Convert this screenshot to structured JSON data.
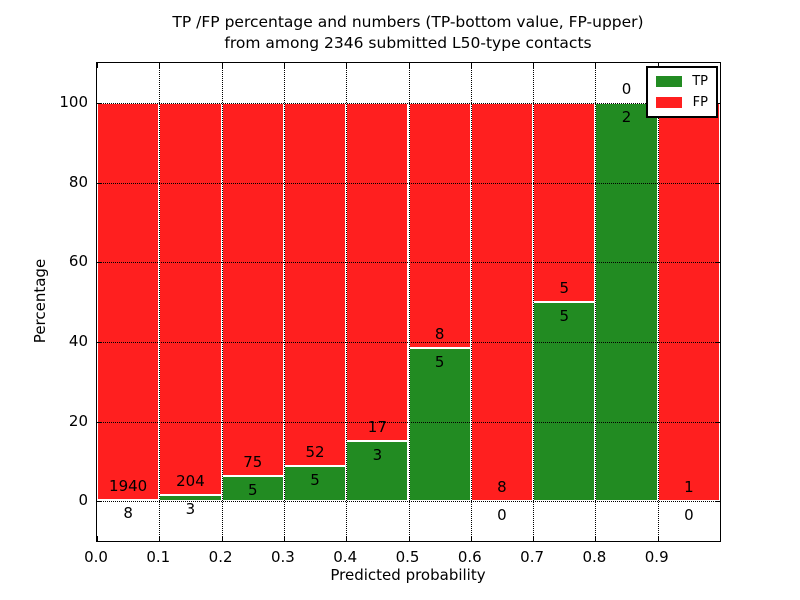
{
  "title": {
    "line1": "TP /FP percentage and numbers (TP-bottom value, FP-upper)",
    "line2": "from among 2346 submitted L50-type contacts"
  },
  "axes": {
    "xlabel": "Predicted probability",
    "ylabel": "Percentage",
    "xtick_labels": [
      "0.0",
      "0.1",
      "0.2",
      "0.3",
      "0.4",
      "0.5",
      "0.6",
      "0.7",
      "0.8",
      "0.9"
    ],
    "ytick_values": [
      0,
      20,
      40,
      60,
      80,
      100
    ],
    "ytick_labels": [
      "0",
      "20",
      "40",
      "60",
      "80",
      "100"
    ]
  },
  "legend": {
    "position": "upper right",
    "items": [
      {
        "label": "TP",
        "color": "#228b22"
      },
      {
        "label": "FP",
        "color": "#ff1f1f"
      }
    ]
  },
  "chart_data": {
    "type": "bar",
    "stacked": true,
    "normalized": "each bin scaled so TP% + FP% = 100",
    "title": "TP /FP percentage and numbers (TP-bottom value, FP-upper) from among 2346 submitted L50-type contacts",
    "xlabel": "Predicted probability",
    "ylabel": "Percentage",
    "xlim": [
      0.0,
      1.0
    ],
    "ylim": [
      -10,
      110
    ],
    "bin_width": 0.1,
    "grid": "dotted",
    "legend_position": "upper right",
    "total_submitted": 2346,
    "colors": {
      "tp": "#228b22",
      "fp": "#ff1f1f"
    },
    "bins": [
      {
        "x0": 0.0,
        "x1": 0.1,
        "tp_count": 8,
        "fp_count": 1940,
        "tp_percent": 0.41
      },
      {
        "x0": 0.1,
        "x1": 0.2,
        "tp_count": 3,
        "fp_count": 204,
        "tp_percent": 1.45
      },
      {
        "x0": 0.2,
        "x1": 0.3,
        "tp_count": 5,
        "fp_count": 75,
        "tp_percent": 6.25
      },
      {
        "x0": 0.3,
        "x1": 0.4,
        "tp_count": 5,
        "fp_count": 52,
        "tp_percent": 8.77
      },
      {
        "x0": 0.4,
        "x1": 0.5,
        "tp_count": 3,
        "fp_count": 17,
        "tp_percent": 15.0
      },
      {
        "x0": 0.5,
        "x1": 0.6,
        "tp_count": 5,
        "fp_count": 8,
        "tp_percent": 38.46
      },
      {
        "x0": 0.6,
        "x1": 0.7,
        "tp_count": 0,
        "fp_count": 8,
        "tp_percent": 0.0
      },
      {
        "x0": 0.7,
        "x1": 0.8,
        "tp_count": 5,
        "fp_count": 5,
        "tp_percent": 50.0
      },
      {
        "x0": 0.8,
        "x1": 0.9,
        "tp_count": 2,
        "fp_count": 0,
        "tp_percent": 100.0
      },
      {
        "x0": 0.9,
        "x1": 1.0,
        "tp_count": 0,
        "fp_count": 1,
        "tp_percent": 0.0
      }
    ],
    "series": [
      {
        "name": "TP",
        "color": "#228b22",
        "counts": [
          8,
          3,
          5,
          5,
          3,
          5,
          0,
          5,
          2,
          0
        ]
      },
      {
        "name": "FP",
        "color": "#ff1f1f",
        "counts": [
          1940,
          204,
          75,
          52,
          17,
          8,
          8,
          5,
          0,
          1
        ]
      }
    ]
  }
}
